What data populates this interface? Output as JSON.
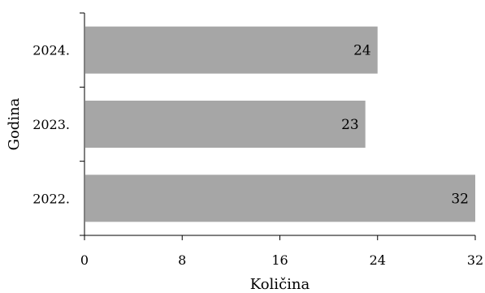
{
  "chart_data": {
    "type": "bar",
    "orientation": "horizontal",
    "categories": [
      "2024.",
      "2023.",
      "2022."
    ],
    "values": [
      24,
      23,
      32
    ],
    "data_labels": [
      "24",
      "23",
      "32"
    ],
    "xlabel": "Količina",
    "ylabel": "Godina",
    "xlim": [
      0,
      32
    ],
    "x_ticks": [
      "0",
      "8",
      "16",
      "24",
      "32"
    ],
    "grid": false,
    "legend": "none",
    "bar_color": "#a6a6a6"
  }
}
